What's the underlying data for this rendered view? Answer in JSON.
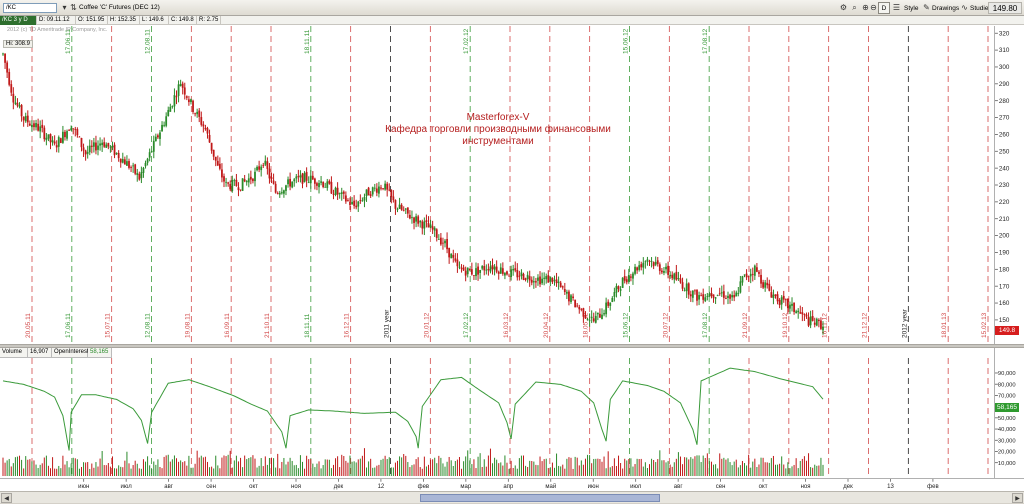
{
  "toolbar": {
    "symbol_value": "/KC",
    "instrument_title": "Coffee 'C' Futures (DEC 12)",
    "price": "149.80",
    "d_label": "D",
    "style_label": "Style",
    "drawings_label": "Drawings",
    "studies_label": "Studies"
  },
  "quote": {
    "symbol_tag": "/KC 3 y D",
    "date": "D: 09.11.12",
    "open": "O: 151.95",
    "high": "H: 152.35",
    "low": "L: 149.6",
    "close": "C: 149.8",
    "range": "R: 2.75"
  },
  "annotations": {
    "copyright": "2012 (c) TD Ameritrade IP Company, Inc.",
    "hi_label": "Hi: 308.9",
    "watermark_line1": "Masterforex-V",
    "watermark_line2": "Кафедра торговли производными финансовыми",
    "watermark_line3": "инструментами",
    "last_price": "149.8",
    "oi_last": "58,165"
  },
  "volume_header": {
    "volume_label": "Volume",
    "volume_value": "16,907",
    "oi_label": "OpenInterest",
    "oi_value": "58,165"
  },
  "colors": {
    "up": "#2a8a2a",
    "down": "#c01818",
    "grid_red": "#d24a4a",
    "grid_green": "#3a9a3a",
    "grid_black": "#222222",
    "open_interest": "#3a9a3a"
  },
  "price_axis": {
    "min": 140,
    "max": 320,
    "ticks": [
      "150",
      "160",
      "170",
      "180",
      "190",
      "200",
      "210",
      "220",
      "230",
      "240",
      "250",
      "260",
      "270",
      "280",
      "290",
      "300",
      "310",
      "320"
    ]
  },
  "volume_axis": {
    "ticks": [
      "10,000",
      "20,000",
      "30,000",
      "40,000",
      "50,000",
      "60,000",
      "70,000",
      "80,000",
      "90,000"
    ]
  },
  "time_axis": {
    "labels": [
      "июн",
      "июл",
      "авг",
      "сен",
      "окт",
      "ноя",
      "дек",
      "12",
      "фев",
      "мар",
      "апр",
      "май",
      "июн",
      "июл",
      "авг",
      "сен",
      "окт",
      "ноя",
      "дек",
      "13",
      "фев"
    ]
  },
  "vertical_date_labels": [
    {
      "text": "20.05.11",
      "color": "red"
    },
    {
      "text": "17.06.11",
      "color": "green"
    },
    {
      "text": "15.07.11",
      "color": "red"
    },
    {
      "text": "12.08.11",
      "color": "green"
    },
    {
      "text": "19.08.11",
      "color": "red"
    },
    {
      "text": "16.09.11",
      "color": "red"
    },
    {
      "text": "21.10.11",
      "color": "red"
    },
    {
      "text": "18.11.11",
      "color": "green"
    },
    {
      "text": "16.12.11",
      "color": "red"
    },
    {
      "text": "2011 year",
      "color": "black"
    },
    {
      "text": "20.01.12",
      "color": "red"
    },
    {
      "text": "17.02.12",
      "color": "green"
    },
    {
      "text": "16.03.12",
      "color": "red"
    },
    {
      "text": "20.04.12",
      "color": "red"
    },
    {
      "text": "18.05.12",
      "color": "red"
    },
    {
      "text": "15.06.12",
      "color": "green"
    },
    {
      "text": "20.07.12",
      "color": "red"
    },
    {
      "text": "17.08.12",
      "color": "green"
    },
    {
      "text": "21.09.12",
      "color": "red"
    },
    {
      "text": "19.10.12",
      "color": "red"
    },
    {
      "text": "16.11.12",
      "color": "red"
    },
    {
      "text": "21.12.12",
      "color": "red"
    },
    {
      "text": "2012 year",
      "color": "black"
    },
    {
      "text": "18.01.13",
      "color": "red"
    },
    {
      "text": "15.02.13",
      "color": "red"
    }
  ],
  "top_date_labels": [
    "17.06.11",
    "12.08.11",
    "18.11.11",
    "17.02.12",
    "15.06.12",
    "17.08.12"
  ],
  "chart_data": {
    "type": "candlestick",
    "price_keypoints": [
      [
        0,
        305
      ],
      [
        5,
        280
      ],
      [
        10,
        268
      ],
      [
        18,
        262
      ],
      [
        25,
        252
      ],
      [
        33,
        265
      ],
      [
        40,
        248
      ],
      [
        48,
        255
      ],
      [
        55,
        248
      ],
      [
        62,
        240
      ],
      [
        66,
        234
      ],
      [
        72,
        250
      ],
      [
        80,
        272
      ],
      [
        86,
        289
      ],
      [
        92,
        274
      ],
      [
        98,
        262
      ],
      [
        104,
        240
      ],
      [
        108,
        230
      ],
      [
        115,
        230
      ],
      [
        122,
        236
      ],
      [
        126,
        244
      ],
      [
        132,
        226
      ],
      [
        140,
        232
      ],
      [
        146,
        234
      ],
      [
        154,
        232
      ],
      [
        162,
        225
      ],
      [
        170,
        218
      ],
      [
        177,
        226
      ],
      [
        184,
        230
      ],
      [
        190,
        218
      ],
      [
        196,
        213
      ],
      [
        203,
        208
      ],
      [
        208,
        204
      ],
      [
        214,
        196
      ],
      [
        220,
        182
      ],
      [
        228,
        180
      ],
      [
        236,
        184
      ],
      [
        244,
        180
      ],
      [
        252,
        178
      ],
      [
        260,
        176
      ],
      [
        266,
        176
      ],
      [
        272,
        168
      ],
      [
        280,
        158
      ],
      [
        286,
        152
      ],
      [
        292,
        160
      ],
      [
        300,
        175
      ],
      [
        308,
        184
      ],
      [
        312,
        188
      ],
      [
        318,
        183
      ],
      [
        324,
        178
      ],
      [
        330,
        172
      ],
      [
        336,
        166
      ],
      [
        342,
        168
      ],
      [
        348,
        168
      ],
      [
        354,
        164
      ],
      [
        358,
        176
      ],
      [
        364,
        182
      ],
      [
        368,
        174
      ],
      [
        372,
        168
      ],
      [
        378,
        162
      ],
      [
        384,
        158
      ],
      [
        390,
        152
      ],
      [
        396,
        150
      ]
    ],
    "oi_keypoints": [
      [
        0,
        82
      ],
      [
        10,
        79
      ],
      [
        20,
        73
      ],
      [
        25,
        68
      ],
      [
        29,
        52
      ],
      [
        31,
        32
      ],
      [
        32,
        22
      ],
      [
        33,
        55
      ],
      [
        38,
        70
      ],
      [
        45,
        70
      ],
      [
        55,
        66
      ],
      [
        63,
        58
      ],
      [
        67,
        48
      ],
      [
        70,
        28
      ],
      [
        72,
        55
      ],
      [
        80,
        80
      ],
      [
        90,
        83
      ],
      [
        100,
        77
      ],
      [
        112,
        69
      ],
      [
        120,
        62
      ],
      [
        128,
        56
      ],
      [
        135,
        38
      ],
      [
        137,
        24
      ],
      [
        139,
        52
      ],
      [
        148,
        57
      ],
      [
        160,
        56
      ],
      [
        175,
        54
      ],
      [
        190,
        55
      ],
      [
        196,
        47
      ],
      [
        200,
        34
      ],
      [
        201,
        24
      ],
      [
        203,
        60
      ],
      [
        212,
        83
      ],
      [
        222,
        85
      ],
      [
        230,
        75
      ],
      [
        240,
        63
      ],
      [
        244,
        46
      ],
      [
        246,
        32
      ],
      [
        248,
        62
      ],
      [
        258,
        81
      ],
      [
        270,
        79
      ],
      [
        280,
        73
      ],
      [
        286,
        63
      ],
      [
        290,
        40
      ],
      [
        292,
        30
      ],
      [
        294,
        66
      ],
      [
        300,
        82
      ],
      [
        312,
        78
      ],
      [
        320,
        73
      ],
      [
        328,
        63
      ],
      [
        334,
        40
      ],
      [
        336,
        27
      ],
      [
        338,
        82
      ],
      [
        352,
        93
      ],
      [
        364,
        90
      ],
      [
        376,
        84
      ],
      [
        392,
        77
      ],
      [
        398,
        64
      ]
    ],
    "price_range": [
      140,
      320
    ],
    "volume_range": [
      0,
      100000
    ],
    "bar_count": 398
  }
}
